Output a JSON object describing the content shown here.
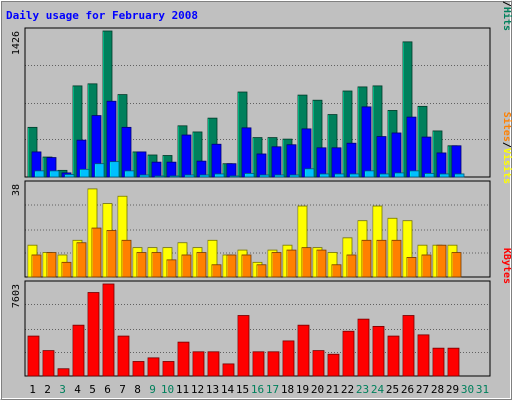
{
  "colors": {
    "background": "#C0C0C0",
    "hits": "#00805C",
    "files": "#0000FF",
    "pages": "#00C0FF",
    "visits": "#FFFF00",
    "sites": "#FF8000",
    "kbytes": "#FF0000",
    "title": "#0000FF",
    "weekend_label": "#00805C",
    "weekday_label": "#000000"
  },
  "chart_data": [
    {
      "type": "bar",
      "title": "Daily usage for February 2008",
      "categories": [
        "1",
        "2",
        "3",
        "4",
        "5",
        "6",
        "7",
        "8",
        "9",
        "10",
        "11",
        "12",
        "13",
        "14",
        "15",
        "16",
        "17",
        "18",
        "19",
        "20",
        "21",
        "22",
        "23",
        "24",
        "25",
        "26",
        "27",
        "28",
        "29",
        "30",
        "31"
      ],
      "weekend_days": [
        "3",
        "9",
        "10",
        "16",
        "17",
        "23",
        "24",
        "30",
        "31"
      ],
      "ymax_label": "1426",
      "ylim": [
        0,
        1426
      ],
      "legend": [
        "Pages",
        "/",
        "Files",
        "/",
        "Hits"
      ],
      "series": [
        {
          "name": "Hits",
          "values": [
            485,
            195,
            65,
            890,
            910,
            1426,
            805,
            245,
            215,
            210,
            500,
            440,
            575,
            130,
            830,
            385,
            385,
            370,
            800,
            750,
            610,
            840,
            880,
            890,
            650,
            1320,
            690,
            450,
            305,
            0,
            0
          ]
        },
        {
          "name": "Files",
          "values": [
            245,
            190,
            40,
            360,
            600,
            740,
            485,
            245,
            145,
            145,
            410,
            155,
            320,
            130,
            480,
            225,
            295,
            315,
            470,
            285,
            285,
            330,
            685,
            395,
            430,
            585,
            390,
            235,
            305,
            0,
            0
          ]
        },
        {
          "name": "Pages",
          "values": [
            60,
            60,
            25,
            75,
            130,
            150,
            60,
            20,
            10,
            10,
            20,
            20,
            30,
            10,
            35,
            20,
            20,
            20,
            80,
            30,
            30,
            30,
            60,
            30,
            40,
            60,
            35,
            30,
            30,
            0,
            0
          ]
        }
      ]
    },
    {
      "type": "bar",
      "ymax_label": "38",
      "ylim": [
        0,
        38
      ],
      "legend": [
        "Sites",
        "/",
        "Visits"
      ],
      "series": [
        {
          "name": "Visits",
          "values": [
            13,
            10,
            9,
            15,
            36,
            30,
            33,
            12,
            12,
            12,
            14,
            12,
            15,
            9,
            11,
            6,
            11,
            13,
            29,
            12,
            10,
            16,
            23,
            29,
            24,
            23,
            13,
            13,
            13,
            0,
            0
          ]
        },
        {
          "name": "Sites",
          "values": [
            9,
            10,
            6,
            14,
            20,
            19,
            15,
            10,
            10,
            7,
            9,
            10,
            5,
            9,
            9,
            5,
            10,
            11,
            12,
            11,
            5,
            9,
            15,
            15,
            15,
            8,
            9,
            13,
            10,
            0,
            0
          ]
        }
      ]
    },
    {
      "type": "bar",
      "ymax_label": "7603",
      "ylim": [
        0,
        7603
      ],
      "legend": [
        "KBytes"
      ],
      "series": [
        {
          "name": "KBytes",
          "values": [
            3300,
            2100,
            600,
            4200,
            6900,
            7603,
            3300,
            1200,
            1500,
            1200,
            2800,
            2000,
            2000,
            1000,
            5000,
            2000,
            2000,
            2900,
            4200,
            2100,
            1800,
            3700,
            4700,
            4100,
            3300,
            5000,
            3400,
            2300,
            2300,
            0,
            0
          ]
        }
      ]
    }
  ]
}
